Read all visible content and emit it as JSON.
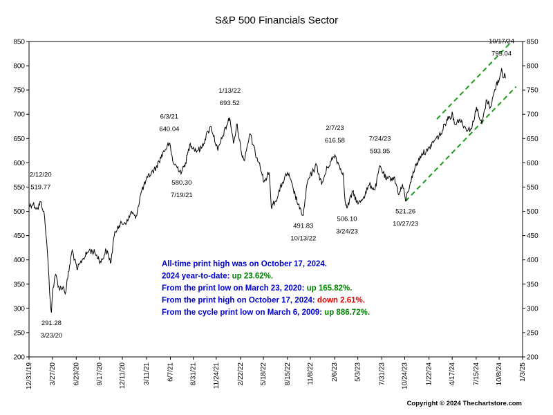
{
  "chart_data": {
    "type": "line",
    "title": "S&P 500 Financials Sector",
    "xlabel": "",
    "ylabel": "",
    "ylim": [
      200,
      850
    ],
    "y_ticks": [
      200,
      250,
      300,
      350,
      400,
      450,
      500,
      550,
      600,
      650,
      700,
      750,
      800,
      850
    ],
    "x_range": [
      "2019-12-31",
      "2025-01-03"
    ],
    "x_ticks": [
      {
        "date": "2019-12-31",
        "label": "12/31/19"
      },
      {
        "date": "2020-03-27",
        "label": "3/27/20"
      },
      {
        "date": "2020-06-23",
        "label": "6/23/20"
      },
      {
        "date": "2020-09-17",
        "label": "9/17/20"
      },
      {
        "date": "2020-12-11",
        "label": "12/11/20"
      },
      {
        "date": "2021-03-11",
        "label": "3/11/21"
      },
      {
        "date": "2021-06-07",
        "label": "6/7/21"
      },
      {
        "date": "2021-08-31",
        "label": "8/31/21"
      },
      {
        "date": "2021-11-24",
        "label": "11/24/21"
      },
      {
        "date": "2022-02-22",
        "label": "2/22/22"
      },
      {
        "date": "2022-05-18",
        "label": "5/18/22"
      },
      {
        "date": "2022-08-15",
        "label": "8/15/22"
      },
      {
        "date": "2022-11-08",
        "label": "11/8/22"
      },
      {
        "date": "2023-02-06",
        "label": "2/6/23"
      },
      {
        "date": "2023-05-03",
        "label": "5/3/23"
      },
      {
        "date": "2023-07-31",
        "label": "7/31/23"
      },
      {
        "date": "2023-10-24",
        "label": "10/24/23"
      },
      {
        "date": "2024-01-22",
        "label": "1/22/24"
      },
      {
        "date": "2024-04-17",
        "label": "4/17/24"
      },
      {
        "date": "2024-07-15",
        "label": "7/15/24"
      },
      {
        "date": "2024-10-08",
        "label": "10/8/24"
      },
      {
        "date": "2025-01-03",
        "label": "1/3/25"
      }
    ],
    "grid": false,
    "series": [
      {
        "values": [
          [
            "2019-12-31",
            512
          ],
          [
            "2020-01-15",
            515
          ],
          [
            "2020-02-01",
            505
          ],
          [
            "2020-02-12",
            519.77
          ],
          [
            "2020-02-24",
            500
          ],
          [
            "2020-03-05",
            440
          ],
          [
            "2020-03-12",
            380
          ],
          [
            "2020-03-18",
            320
          ],
          [
            "2020-03-23",
            291.28
          ],
          [
            "2020-03-27",
            335
          ],
          [
            "2020-04-08",
            370
          ],
          [
            "2020-04-21",
            340
          ],
          [
            "2020-05-05",
            345
          ],
          [
            "2020-05-13",
            330
          ],
          [
            "2020-06-08",
            420
          ],
          [
            "2020-06-26",
            380
          ],
          [
            "2020-07-15",
            400
          ],
          [
            "2020-08-10",
            420
          ],
          [
            "2020-08-31",
            415
          ],
          [
            "2020-09-23",
            395
          ],
          [
            "2020-10-12",
            420
          ],
          [
            "2020-10-30",
            395
          ],
          [
            "2020-11-09",
            445
          ],
          [
            "2020-11-24",
            470
          ],
          [
            "2020-12-31",
            480
          ],
          [
            "2021-01-14",
            500
          ],
          [
            "2021-01-29",
            485
          ],
          [
            "2021-02-19",
            540
          ],
          [
            "2021-03-15",
            570
          ],
          [
            "2021-04-15",
            590
          ],
          [
            "2021-05-10",
            620
          ],
          [
            "2021-06-03",
            640.04
          ],
          [
            "2021-06-18",
            600
          ],
          [
            "2021-07-19",
            580.3
          ],
          [
            "2021-08-02",
            600
          ],
          [
            "2021-08-20",
            640
          ],
          [
            "2021-09-10",
            625
          ],
          [
            "2021-09-30",
            630
          ],
          [
            "2021-10-25",
            665
          ],
          [
            "2021-11-05",
            675
          ],
          [
            "2021-11-30",
            625
          ],
          [
            "2021-12-15",
            650
          ],
          [
            "2022-01-13",
            693.52
          ],
          [
            "2022-01-27",
            640
          ],
          [
            "2022-02-10",
            680
          ],
          [
            "2022-02-24",
            625
          ],
          [
            "2022-03-07",
            605
          ],
          [
            "2022-03-29",
            660
          ],
          [
            "2022-04-18",
            620
          ],
          [
            "2022-05-04",
            600
          ],
          [
            "2022-05-20",
            560
          ],
          [
            "2022-06-08",
            580
          ],
          [
            "2022-06-16",
            510
          ],
          [
            "2022-07-01",
            520
          ],
          [
            "2022-07-29",
            560
          ],
          [
            "2022-08-16",
            580
          ],
          [
            "2022-09-06",
            545
          ],
          [
            "2022-09-29",
            505
          ],
          [
            "2022-10-13",
            491.83
          ],
          [
            "2022-10-28",
            560
          ],
          [
            "2022-11-15",
            580
          ],
          [
            "2022-12-01",
            595
          ],
          [
            "2022-12-20",
            555
          ],
          [
            "2023-01-10",
            590
          ],
          [
            "2023-02-07",
            616.58
          ],
          [
            "2023-02-22",
            595
          ],
          [
            "2023-03-09",
            580
          ],
          [
            "2023-03-17",
            520
          ],
          [
            "2023-03-24",
            506.1
          ],
          [
            "2023-04-14",
            540
          ],
          [
            "2023-05-04",
            515
          ],
          [
            "2023-05-25",
            530
          ],
          [
            "2023-06-15",
            555
          ],
          [
            "2023-07-06",
            545
          ],
          [
            "2023-07-24",
            593.95
          ],
          [
            "2023-08-17",
            565
          ],
          [
            "2023-09-14",
            570
          ],
          [
            "2023-10-03",
            535
          ],
          [
            "2023-10-16",
            555
          ],
          [
            "2023-10-27",
            521.26
          ],
          [
            "2023-11-14",
            560
          ],
          [
            "2023-12-01",
            590
          ],
          [
            "2023-12-27",
            620
          ],
          [
            "2024-01-17",
            625
          ],
          [
            "2024-02-09",
            645
          ],
          [
            "2024-03-07",
            660
          ],
          [
            "2024-03-28",
            690
          ],
          [
            "2024-04-19",
            700
          ],
          [
            "2024-04-25",
            680
          ],
          [
            "2024-05-15",
            690
          ],
          [
            "2024-06-07",
            670
          ],
          [
            "2024-06-28",
            670
          ],
          [
            "2024-07-16",
            715
          ],
          [
            "2024-07-25",
            695
          ],
          [
            "2024-08-05",
            680
          ],
          [
            "2024-08-23",
            730
          ],
          [
            "2024-09-06",
            715
          ],
          [
            "2024-09-27",
            760
          ],
          [
            "2024-10-10",
            775
          ],
          [
            "2024-10-17",
            795.04
          ],
          [
            "2024-10-24",
            775
          ],
          [
            "2024-10-28",
            785
          ],
          [
            "2024-11-01",
            774
          ]
        ]
      }
    ],
    "trendlines": [
      {
        "start": [
          "2024-02-20",
          690
        ],
        "end": [
          "2024-11-15",
          845
        ]
      },
      {
        "start": [
          "2023-10-27",
          521
        ],
        "end": [
          "2024-12-10",
          757
        ]
      }
    ],
    "annotations": [
      {
        "date_label": "2/12/20",
        "value_label": "519.77",
        "x": "2020-02-12",
        "side": "above"
      },
      {
        "date_label": "3/23/20",
        "value_label": "291.28",
        "x": "2020-03-23",
        "side": "below"
      },
      {
        "date_label": "6/3/21",
        "value_label": "640.04",
        "x": "2021-06-03",
        "side": "above"
      },
      {
        "date_label": "7/19/21",
        "value_label": "580.30",
        "x": "2021-07-19",
        "side": "below"
      },
      {
        "date_label": "1/13/22",
        "value_label": "693.52",
        "x": "2022-01-13",
        "side": "above"
      },
      {
        "date_label": "10/13/22",
        "value_label": "491.83",
        "x": "2022-10-13",
        "side": "below"
      },
      {
        "date_label": "2/7/23",
        "value_label": "616.58",
        "x": "2023-02-07",
        "side": "above"
      },
      {
        "date_label": "3/24/23",
        "value_label": "506.10",
        "x": "2023-03-24",
        "side": "below"
      },
      {
        "date_label": "7/24/23",
        "value_label": "593.95",
        "x": "2023-07-24",
        "side": "above"
      },
      {
        "date_label": "10/27/23",
        "value_label": "521.26",
        "x": "2023-10-27",
        "side": "below"
      },
      {
        "date_label": "10/17/24",
        "value_label": "795.04",
        "x": "2024-10-17",
        "side": "above"
      }
    ],
    "info_box": [
      {
        "text": "All-time print high was on October 17, 2024.",
        "highlight": "",
        "highlight_color": "#0000cc"
      },
      {
        "text": "2024 year-to-date:",
        "highlight": "up 23.62%.",
        "highlight_color": "#008000"
      },
      {
        "text": "From the print low on March 23, 2020:",
        "highlight": "up 165.82%.",
        "highlight_color": "#008000"
      },
      {
        "text": "From the print high on October 17, 2024:",
        "highlight": "down 2.61%.",
        "highlight_color": "#e00000"
      },
      {
        "text": "From the cycle print low on March 6, 2009:",
        "highlight": "up 886.72%.",
        "highlight_color": "#008000"
      }
    ],
    "info_color": "#0000cc",
    "copyright": "Copyright © 2024 Thechartstore.com",
    "line_color": "#000000",
    "trend_color": "#1a9c1a"
  }
}
